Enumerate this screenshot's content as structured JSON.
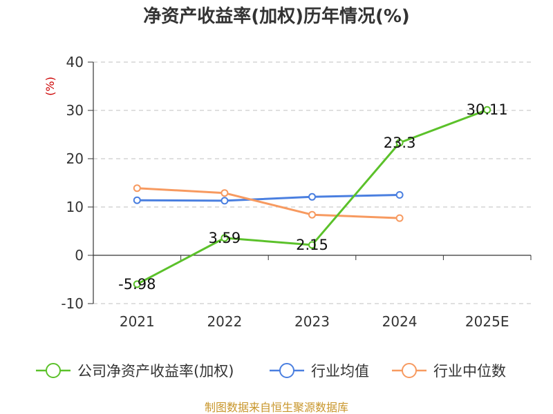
{
  "colors": {
    "company": "#5bc12a",
    "avg": "#4a7fe0",
    "median": "#f79a60",
    "source": "#c8962b",
    "unit": "#cc0000"
  },
  "chart_data": {
    "type": "line",
    "title": "净资产收益率(加权)历年情况(%)",
    "ylabel": "(%)",
    "categories": [
      "2021",
      "2022",
      "2023",
      "2024",
      "2025E"
    ],
    "ylim": [
      -10,
      40
    ],
    "yticks": [
      -10,
      0,
      10,
      20,
      30,
      40
    ],
    "grid": true,
    "legend_position": "bottom",
    "series": [
      {
        "name": "公司净资产收益率(加权)",
        "color": "#5bc12a",
        "values": [
          -5.98,
          3.59,
          2.15,
          23.3,
          30.11
        ],
        "labels": [
          "-5.98",
          "3.59",
          "2.15",
          "23.3",
          "30.11"
        ]
      },
      {
        "name": "行业均值",
        "color": "#4a7fe0",
        "values": [
          11.4,
          11.3,
          12.1,
          12.5,
          null
        ]
      },
      {
        "name": "行业中位数",
        "color": "#f79a60",
        "values": [
          13.9,
          12.9,
          8.4,
          7.7,
          null
        ]
      }
    ],
    "source": "制图数据来自恒生聚源数据库"
  }
}
